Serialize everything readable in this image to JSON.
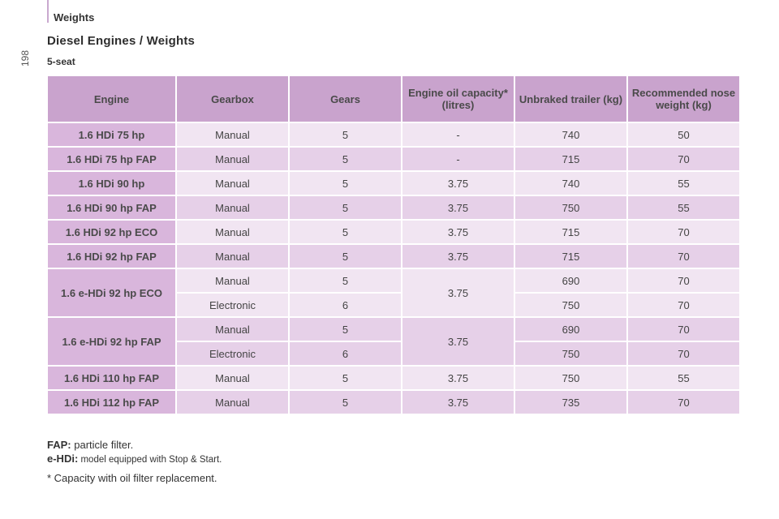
{
  "page_number": "198",
  "section": "Weights",
  "title": "Diesel Engines / Weights",
  "subtitle": "5-seat",
  "table": {
    "headers": [
      "Engine",
      "Gearbox",
      "Gears",
      "Engine oil capacity* (litres)",
      "Unbraked trailer (kg)",
      "Recommended nose weight (kg)"
    ],
    "rows": [
      {
        "engine": "1.6 HDi 75 hp",
        "gearbox": "Manual",
        "gears": "5",
        "oil": "-",
        "trailer": "740",
        "nose": "50"
      },
      {
        "engine": "1.6 HDi 75 hp FAP",
        "gearbox": "Manual",
        "gears": "5",
        "oil": "-",
        "trailer": "715",
        "nose": "70"
      },
      {
        "engine": "1.6 HDi 90 hp",
        "gearbox": "Manual",
        "gears": "5",
        "oil": "3.75",
        "trailer": "740",
        "nose": "55"
      },
      {
        "engine": "1.6 HDi 90 hp FAP",
        "gearbox": "Manual",
        "gears": "5",
        "oil": "3.75",
        "trailer": "750",
        "nose": "55"
      },
      {
        "engine": "1.6 HDi 92 hp ECO",
        "gearbox": "Manual",
        "gears": "5",
        "oil": "3.75",
        "trailer": "715",
        "nose": "70"
      },
      {
        "engine": "1.6 HDi 92 hp FAP",
        "gearbox": "Manual",
        "gears": "5",
        "oil": "3.75",
        "trailer": "715",
        "nose": "70"
      },
      {
        "engine": "1.6 e-HDi 92 hp ECO",
        "gearbox": "Manual",
        "gears": "5",
        "oil": "3.75",
        "trailer": "690",
        "nose": "70",
        "gearbox2": "Electronic",
        "gears2": "6",
        "trailer2": "750",
        "nose2": "70"
      },
      {
        "engine": "1.6 e-HDi 92 hp FAP",
        "gearbox": "Manual",
        "gears": "5",
        "oil": "3.75",
        "trailer": "690",
        "nose": "70",
        "gearbox2": "Electronic",
        "gears2": "6",
        "trailer2": "750",
        "nose2": "70"
      },
      {
        "engine": "1.6 HDi 110 hp FAP",
        "gearbox": "Manual",
        "gears": "5",
        "oil": "3.75",
        "trailer": "750",
        "nose": "55"
      },
      {
        "engine": "1.6 HDi 112 hp FAP",
        "gearbox": "Manual",
        "gears": "5",
        "oil": "3.75",
        "trailer": "735",
        "nose": "70"
      }
    ]
  },
  "footnotes": {
    "fap_term": "FAP:",
    "fap_text": " particle filter.",
    "ehdi_term": "e-HDi:",
    "ehdi_text": " model equipped with Stop & Start.",
    "capacity_note": "* Capacity with oil filter replacement."
  },
  "colors": {
    "header_bg": "#c9a3cd",
    "engine_bg": "#d9b6dc",
    "row_light": "#f1e5f2",
    "row_dark": "#e6d0e8"
  }
}
